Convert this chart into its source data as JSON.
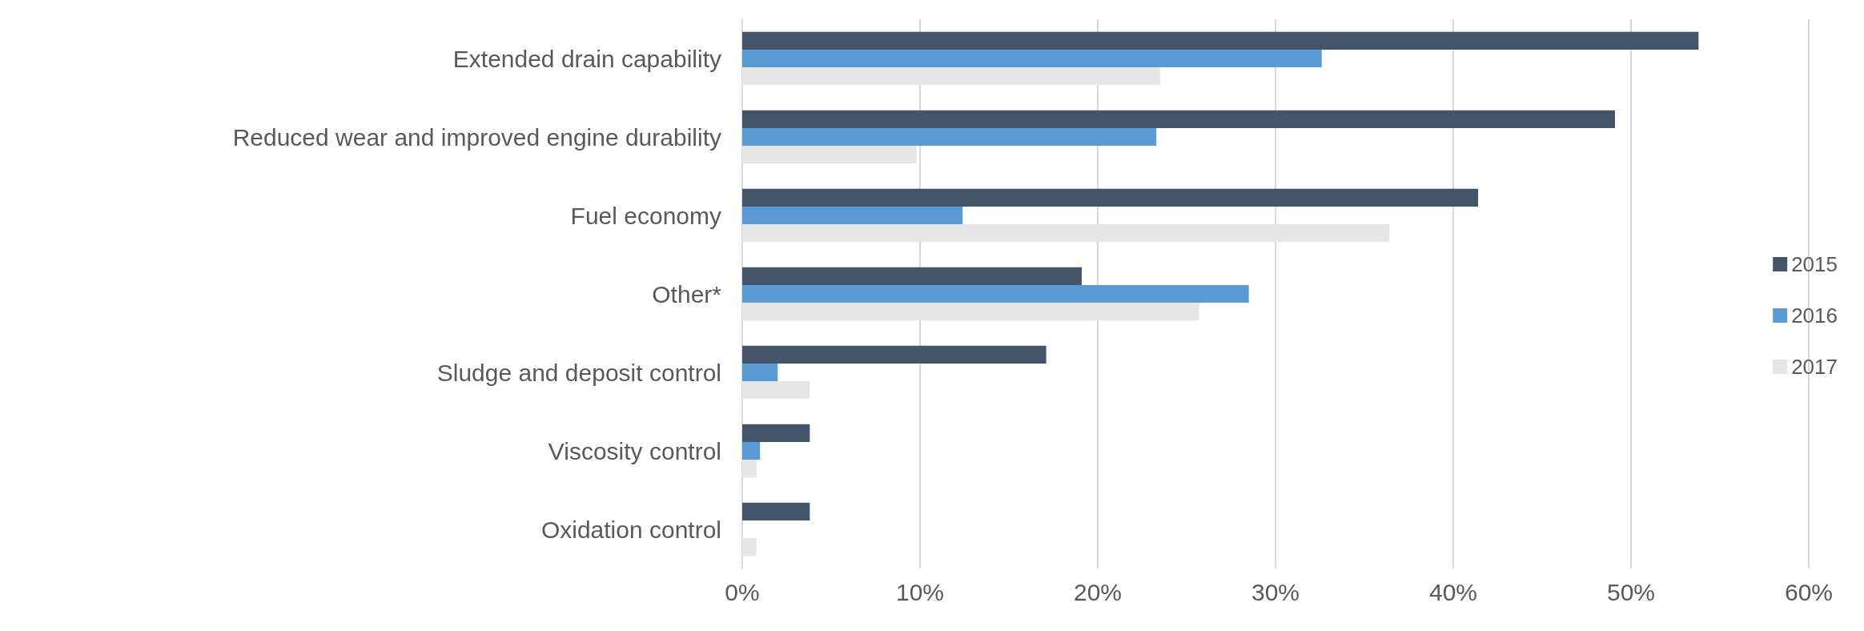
{
  "chart_data": {
    "type": "bar",
    "orientation": "horizontal",
    "categories": [
      "Extended drain capability",
      "Reduced wear and improved engine durability",
      "Fuel economy",
      "Other*",
      "Sludge and deposit control",
      "Viscosity control",
      "Oxidation control"
    ],
    "series": [
      {
        "name": "2015",
        "color": "#44546a",
        "values": [
          53.8,
          49.1,
          41.4,
          19.1,
          17.1,
          3.8,
          3.8
        ]
      },
      {
        "name": "2016",
        "color": "#5b9bd5",
        "values": [
          32.6,
          23.3,
          12.4,
          28.5,
          2.0,
          1.0,
          null
        ]
      },
      {
        "name": "2017",
        "color": "#e7e6e6",
        "values": [
          23.5,
          9.8,
          36.4,
          25.7,
          3.8,
          0.8,
          0.8
        ]
      }
    ],
    "xlim": [
      0,
      60
    ],
    "xticks": [
      {
        "value": 0,
        "label": "0%"
      },
      {
        "value": 10,
        "label": "10%"
      },
      {
        "value": 20,
        "label": "20%"
      },
      {
        "value": 30,
        "label": "30%"
      },
      {
        "value": 40,
        "label": "40%"
      },
      {
        "value": 50,
        "label": "50%"
      },
      {
        "value": 60,
        "label": "60%"
      }
    ],
    "grid": "x",
    "legend": "right"
  }
}
